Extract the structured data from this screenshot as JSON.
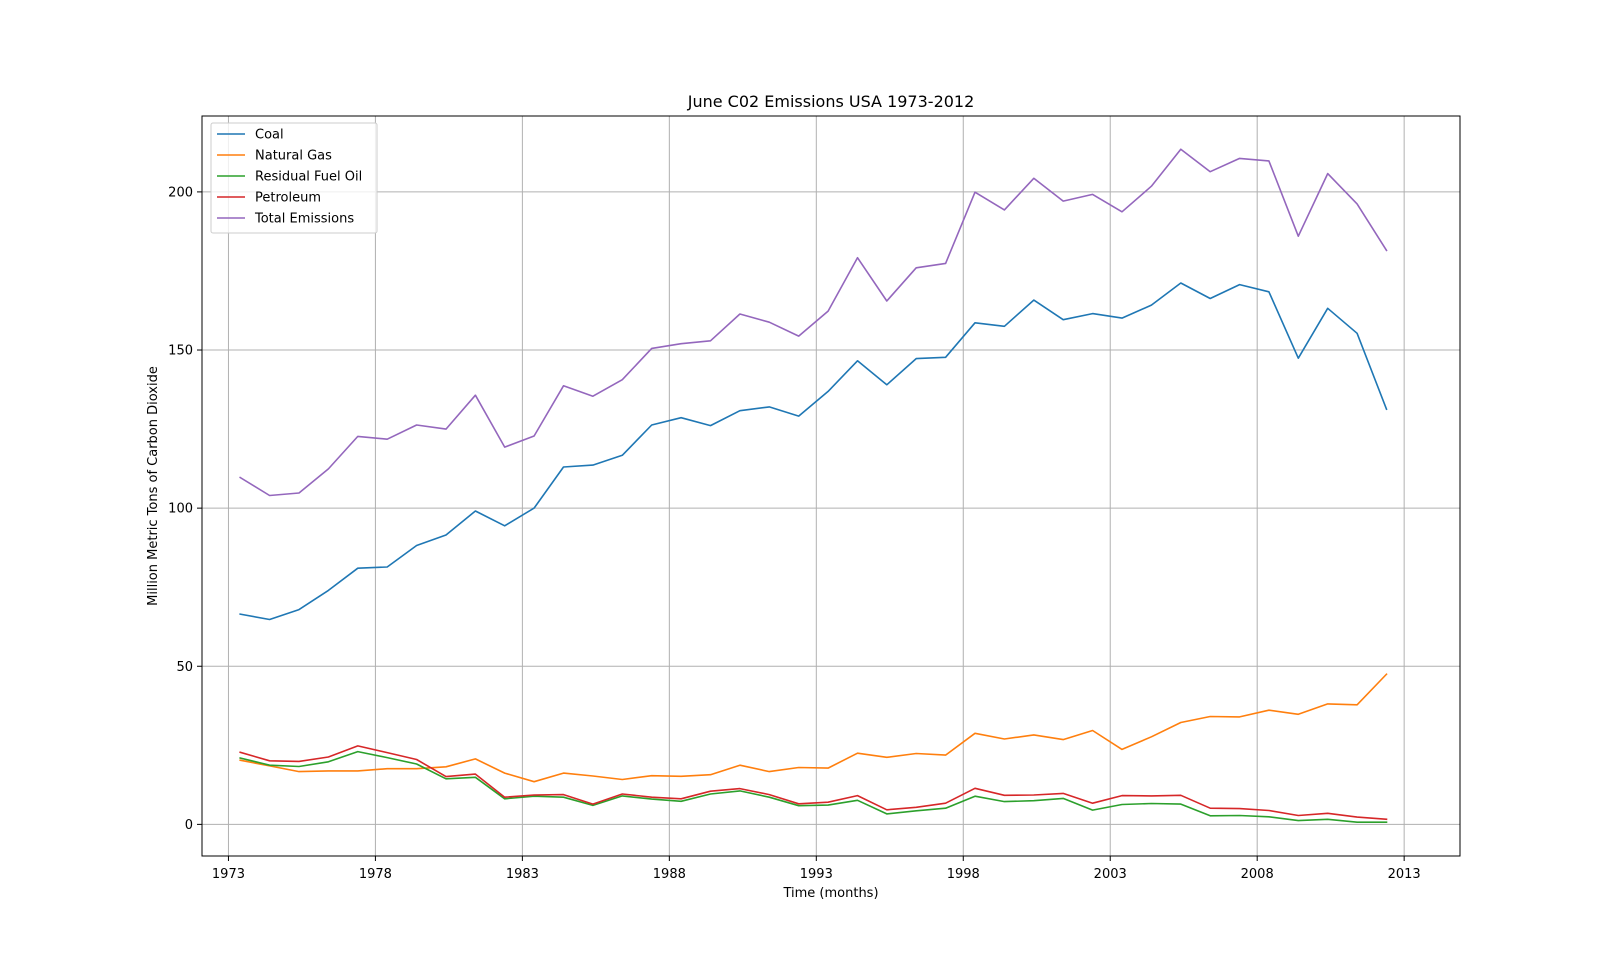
{
  "chart_data": {
    "type": "line",
    "title": "June C02 Emissions USA 1973-2012",
    "xlabel": "Time (months)",
    "ylabel": "Million Metric Tons of Carbon Dioxide",
    "x_ticks": [
      "1973",
      "1978",
      "1983",
      "1988",
      "1993",
      "1998",
      "2003",
      "2008",
      "2013"
    ],
    "y_ticks": [
      "0",
      "50",
      "100",
      "150",
      "200"
    ],
    "xlim": [
      1972.1,
      2014.9
    ],
    "ylim": [
      -10,
      224
    ],
    "grid": true,
    "legend_position": "top-left",
    "x": [
      1973.4,
      1974.4,
      1975.4,
      1976.4,
      1977.4,
      1978.4,
      1979.4,
      1980.4,
      1981.4,
      1982.4,
      1983.4,
      1984.4,
      1985.4,
      1986.4,
      1987.4,
      1988.4,
      1989.4,
      1990.4,
      1991.4,
      1992.4,
      1993.4,
      1994.4,
      1995.4,
      1996.4,
      1997.4,
      1998.4,
      1999.4,
      2000.4,
      2001.4,
      2002.4,
      2003.4,
      2004.4,
      2005.4,
      2006.4,
      2007.4,
      2008.4,
      2009.4,
      2010.4,
      2011.4,
      2012.4
    ],
    "series": [
      {
        "name": "Coal",
        "color": "#1f77b4",
        "values": [
          66.5,
          64.8,
          67.9,
          74.0,
          81.0,
          81.4,
          88.2,
          91.5,
          99.1,
          94.4,
          100.0,
          113.0,
          113.6,
          116.7,
          126.3,
          128.6,
          126.1,
          130.8,
          132.0,
          129.1,
          136.9,
          146.6,
          139.0,
          147.3,
          147.7,
          158.6,
          157.5,
          165.8,
          159.6,
          161.5,
          160.1,
          164.2,
          171.2,
          166.3,
          170.7,
          168.4,
          147.4,
          163.2,
          155.3,
          131.3
        ]
      },
      {
        "name": "Natural Gas",
        "color": "#ff7f0e",
        "values": [
          20.3,
          18.5,
          16.7,
          16.9,
          16.9,
          17.6,
          17.6,
          18.2,
          20.7,
          16.2,
          13.5,
          16.2,
          15.3,
          14.2,
          15.4,
          15.2,
          15.7,
          18.7,
          16.7,
          18.0,
          17.8,
          22.5,
          21.2,
          22.4,
          21.9,
          28.8,
          27.0,
          28.3,
          26.8,
          29.7,
          23.7,
          27.7,
          32.2,
          34.1,
          34.0,
          36.1,
          34.8,
          38.1,
          37.8,
          47.5
        ]
      },
      {
        "name": "Residual Fuel Oil",
        "color": "#2ca02c",
        "values": [
          21.0,
          18.7,
          18.3,
          19.8,
          23.0,
          21.1,
          19.1,
          14.4,
          14.9,
          8.1,
          8.9,
          8.6,
          6.0,
          9.0,
          8.0,
          7.3,
          9.6,
          10.6,
          8.6,
          5.9,
          6.1,
          7.6,
          3.3,
          4.3,
          5.1,
          8.9,
          7.2,
          7.5,
          8.2,
          4.5,
          6.3,
          6.6,
          6.4,
          2.7,
          2.8,
          2.4,
          1.2,
          1.6,
          0.7,
          0.7
        ]
      },
      {
        "name": "Petroleum",
        "color": "#d62728",
        "values": [
          22.8,
          20.1,
          19.9,
          21.3,
          24.8,
          22.7,
          20.5,
          15.1,
          15.9,
          8.6,
          9.3,
          9.4,
          6.4,
          9.6,
          8.6,
          8.1,
          10.5,
          11.3,
          9.4,
          6.5,
          7.0,
          9.1,
          4.6,
          5.4,
          6.7,
          11.4,
          9.2,
          9.3,
          9.8,
          6.7,
          9.1,
          9.0,
          9.2,
          5.1,
          5.0,
          4.4,
          2.8,
          3.5,
          2.3,
          1.6
        ]
      },
      {
        "name": "Total Emissions",
        "color": "#9467bd",
        "values": [
          109.7,
          104.0,
          104.8,
          112.4,
          122.7,
          121.8,
          126.3,
          125.0,
          135.7,
          119.3,
          122.8,
          138.7,
          135.4,
          140.6,
          150.5,
          152.0,
          152.9,
          161.4,
          158.8,
          154.4,
          162.3,
          179.2,
          165.5,
          176.0,
          177.4,
          199.9,
          194.3,
          204.3,
          197.1,
          199.2,
          193.7,
          201.8,
          213.5,
          206.4,
          210.6,
          209.8,
          186.0,
          205.8,
          196.2,
          181.5
        ]
      }
    ]
  }
}
